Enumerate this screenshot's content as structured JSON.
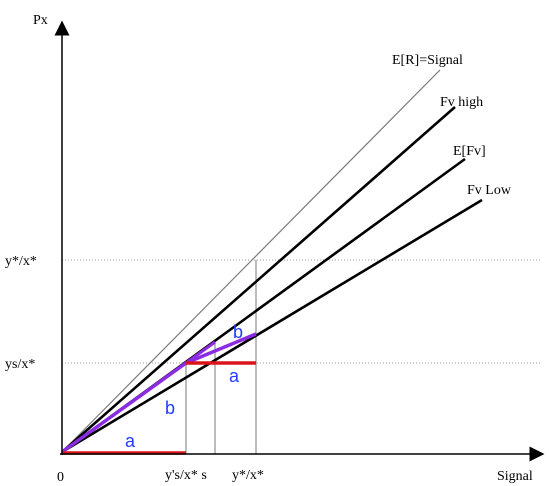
{
  "axes": {
    "y_label": "Px",
    "x_label": "Signal",
    "origin_label": "0"
  },
  "y_ticks": {
    "upper": "y*/x*",
    "lower": "ys/x*"
  },
  "x_ticks": {
    "first": "y's/x* s",
    "second": "y*/x*"
  },
  "lines": {
    "signal": "E[R]=Signal",
    "fv_high": "Fv high",
    "e_fv": "E[Fv]",
    "fv_low": "Fv Low"
  },
  "segment_labels": {
    "a_bottom": "a",
    "b_diag": "b",
    "a_mid": "a",
    "b_top": "b"
  },
  "colors": {
    "axis": "#000000",
    "signal_line": "#7a7a7a",
    "main_lines": "#000000",
    "dotted": "#9a9a9a",
    "red": "#d9141a",
    "purple": "#8b2be2",
    "label_blue": "#1f3cff"
  }
}
